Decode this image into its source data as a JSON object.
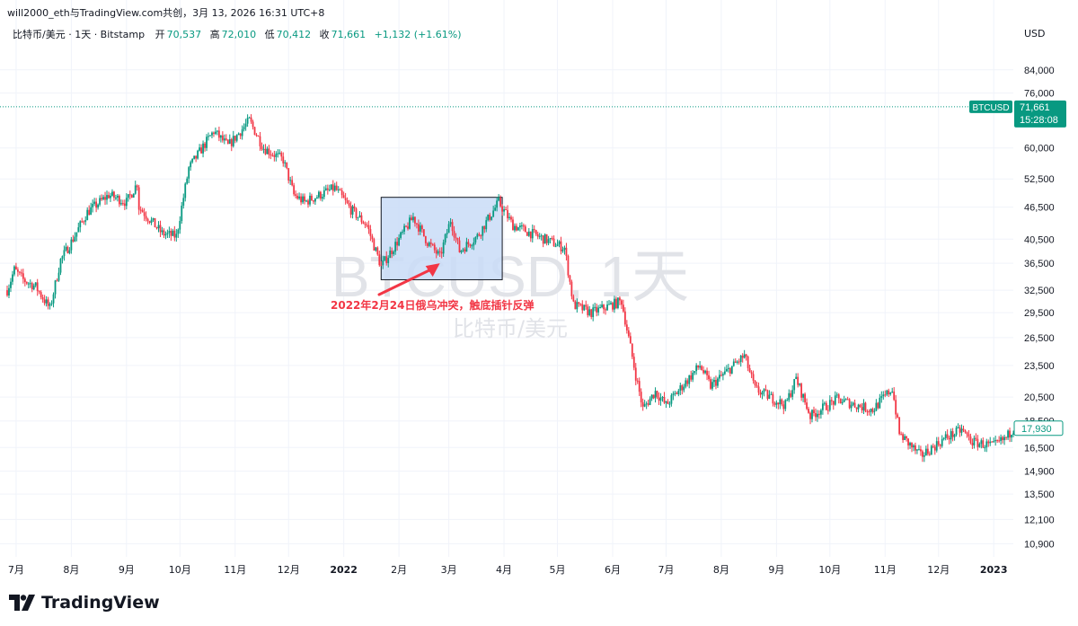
{
  "caption": "will2000_eth与TradingView.com共创，3月 13, 2026 16:31 UTC+8",
  "legend": {
    "symbol": "比特币/美元 · 1天 · Bitstamp",
    "open_label": "开",
    "open": "70,537",
    "high_label": "高",
    "high": "72,010",
    "low_label": "低",
    "low": "70,412",
    "close_label": "收",
    "close": "71,661",
    "change": "+1,132 (+1.61%)"
  },
  "currency": "USD",
  "watermark": {
    "line1": "BTCUSD, 1天",
    "line2": "比特币/美元"
  },
  "brand": "TradingView",
  "colors": {
    "up": "#089981",
    "down": "#f23645",
    "highlight_fill": "#c9dcf7",
    "annotation": "#f23645"
  },
  "chart_data": {
    "type": "candlestick",
    "title": "比特币/美元 · 1天 · Bitstamp",
    "y_scale": "log",
    "ylim": [
      10300,
      95000
    ],
    "x_range": [
      "2021-06-26",
      "2023-01-12"
    ],
    "ylabel": "USD",
    "y_ticks": [
      10900,
      12100,
      13500,
      14900,
      16500,
      18500,
      20500,
      23500,
      26500,
      29500,
      32500,
      36500,
      40500,
      46500,
      52500,
      60000,
      76000,
      84000
    ],
    "y_tick_labels": [
      "10,900",
      "12,100",
      "13,500",
      "14,900",
      "16,500",
      "18,500",
      "20,500",
      "23,500",
      "26,500",
      "29,500",
      "32,500",
      "36,500",
      "40,500",
      "46,500",
      "52,500",
      "60,000",
      "76,000",
      "84,000"
    ],
    "x_ticks": [
      {
        "date": "2021-07-01",
        "label": "7月"
      },
      {
        "date": "2021-08-01",
        "label": "8月"
      },
      {
        "date": "2021-09-01",
        "label": "9月"
      },
      {
        "date": "2021-10-01",
        "label": "10月"
      },
      {
        "date": "2021-11-01",
        "label": "11月"
      },
      {
        "date": "2021-12-01",
        "label": "12月"
      },
      {
        "date": "2022-01-01",
        "label": "2022",
        "bold": true
      },
      {
        "date": "2022-02-01",
        "label": "2月"
      },
      {
        "date": "2022-03-01",
        "label": "3月"
      },
      {
        "date": "2022-04-01",
        "label": "4月"
      },
      {
        "date": "2022-05-01",
        "label": "5月"
      },
      {
        "date": "2022-06-01",
        "label": "6月"
      },
      {
        "date": "2022-07-01",
        "label": "7月"
      },
      {
        "date": "2022-08-01",
        "label": "8月"
      },
      {
        "date": "2022-09-01",
        "label": "9月"
      },
      {
        "date": "2022-10-01",
        "label": "10月"
      },
      {
        "date": "2022-11-01",
        "label": "11月"
      },
      {
        "date": "2022-12-01",
        "label": "12月"
      },
      {
        "date": "2023-01-01",
        "label": "2023",
        "bold": true
      }
    ],
    "price_path": [
      [
        "2021-06-26",
        32500
      ],
      [
        "2021-06-30",
        35500
      ],
      [
        "2021-07-05",
        34000
      ],
      [
        "2021-07-12",
        33000
      ],
      [
        "2021-07-20",
        30000
      ],
      [
        "2021-07-26",
        37000
      ],
      [
        "2021-08-01",
        40000
      ],
      [
        "2021-08-10",
        45500
      ],
      [
        "2021-08-22",
        49000
      ],
      [
        "2021-09-01",
        47500
      ],
      [
        "2021-09-07",
        51500
      ],
      [
        "2021-09-08",
        46500
      ],
      [
        "2021-09-21",
        41500
      ],
      [
        "2021-09-29",
        41000
      ],
      [
        "2021-10-06",
        55000
      ],
      [
        "2021-10-15",
        61000
      ],
      [
        "2021-10-20",
        64500
      ],
      [
        "2021-10-28",
        60500
      ],
      [
        "2021-11-09",
        67500
      ],
      [
        "2021-11-17",
        60000
      ],
      [
        "2021-11-28",
        57000
      ],
      [
        "2021-12-04",
        49000
      ],
      [
        "2021-12-10",
        47500
      ],
      [
        "2021-12-27",
        50500
      ],
      [
        "2022-01-05",
        46000
      ],
      [
        "2022-01-14",
        43000
      ],
      [
        "2022-01-22",
        36000
      ],
      [
        "2022-02-09",
        44500
      ],
      [
        "2022-02-17",
        40000
      ],
      [
        "2022-02-24",
        37500
      ],
      [
        "2022-03-02",
        44000
      ],
      [
        "2022-03-07",
        38500
      ],
      [
        "2022-03-17",
        41000
      ],
      [
        "2022-03-29",
        47500
      ],
      [
        "2022-04-06",
        43000
      ],
      [
        "2022-04-20",
        41000
      ],
      [
        "2022-05-05",
        39000
      ],
      [
        "2022-05-10",
        30500
      ],
      [
        "2022-05-20",
        29500
      ],
      [
        "2022-06-06",
        31000
      ],
      [
        "2022-06-14",
        22500
      ],
      [
        "2022-06-18",
        19500
      ],
      [
        "2022-06-25",
        21000
      ],
      [
        "2022-07-01",
        19800
      ],
      [
        "2022-07-20",
        23500
      ],
      [
        "2022-07-26",
        21500
      ],
      [
        "2022-08-14",
        24500
      ],
      [
        "2022-08-20",
        21200
      ],
      [
        "2022-09-06",
        19800
      ],
      [
        "2022-09-12",
        22200
      ],
      [
        "2022-09-20",
        18900
      ],
      [
        "2022-10-05",
        20300
      ],
      [
        "2022-10-25",
        19400
      ],
      [
        "2022-11-05",
        21300
      ],
      [
        "2022-11-09",
        17500
      ],
      [
        "2022-11-21",
        15900
      ],
      [
        "2022-12-05",
        17200
      ],
      [
        "2022-12-14",
        17800
      ],
      [
        "2022-12-20",
        16900
      ],
      [
        "2023-01-01",
        16600
      ],
      [
        "2023-01-08",
        17200
      ],
      [
        "2023-01-12",
        17930
      ]
    ],
    "last_price": {
      "symbol": "BTCUSD",
      "price": "71,661",
      "countdown": "15:28:08",
      "value": 71661
    },
    "marked_price": {
      "label": "17,930",
      "value": 17930
    },
    "highlight_box": {
      "from": "2022-01-22",
      "to": "2022-03-31",
      "low": 34000,
      "high": 48500
    },
    "annotation": {
      "text": "2022年2月24日俄乌冲突，触底插针反弹",
      "target_date": "2022-02-24",
      "target_price": 36500
    }
  }
}
